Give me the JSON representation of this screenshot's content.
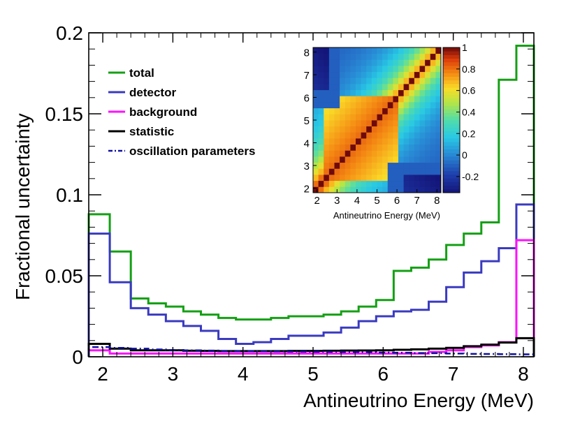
{
  "chart_data": [
    {
      "type": "step",
      "xlabel": "Antineutrino Energy (MeV)",
      "ylabel": "Fractional uncertainty",
      "xlim": [
        1.8,
        8.15
      ],
      "ylim": [
        0,
        0.2
      ],
      "xticks": [
        2,
        3,
        4,
        5,
        6,
        7,
        8
      ],
      "xtick_labels": [
        "2",
        "3",
        "4",
        "5",
        "6",
        "7",
        "8"
      ],
      "yticks": [
        0,
        0.05,
        0.1,
        0.15,
        0.2
      ],
      "ytick_labels": [
        "0",
        "0.05",
        "0.1",
        "0.15",
        "0.2"
      ],
      "legend_position": "upper-left",
      "bin_edges": [
        1.8,
        2.1,
        2.4,
        2.65,
        2.9,
        3.15,
        3.4,
        3.65,
        3.9,
        4.15,
        4.4,
        4.65,
        4.9,
        5.15,
        5.4,
        5.65,
        5.9,
        6.15,
        6.4,
        6.65,
        6.9,
        7.15,
        7.4,
        7.65,
        7.9,
        8.15
      ],
      "series": [
        {
          "name": "total",
          "color": "#14a014",
          "dash": "solid",
          "values": [
            0.088,
            0.065,
            0.036,
            0.033,
            0.031,
            0.028,
            0.026,
            0.024,
            0.023,
            0.023,
            0.024,
            0.025,
            0.025,
            0.026,
            0.028,
            0.031,
            0.035,
            0.053,
            0.055,
            0.06,
            0.069,
            0.076,
            0.083,
            0.171,
            0.192
          ]
        },
        {
          "name": "detector",
          "color": "#3a3ac0",
          "dash": "solid",
          "values": [
            0.076,
            0.046,
            0.03,
            0.026,
            0.022,
            0.019,
            0.016,
            0.011,
            0.008,
            0.009,
            0.011,
            0.013,
            0.013,
            0.015,
            0.018,
            0.022,
            0.025,
            0.028,
            0.029,
            0.034,
            0.043,
            0.052,
            0.059,
            0.067,
            0.094
          ]
        },
        {
          "name": "background",
          "color": "#ff10ff",
          "dash": "solid",
          "values": [
            0.004,
            0.002,
            0.002,
            0.002,
            0.002,
            0.002,
            0.002,
            0.002,
            0.002,
            0.002,
            0.002,
            0.002,
            0.002,
            0.002,
            0.002,
            0.002,
            0.002,
            0.002,
            0.002,
            0.003,
            0.004,
            0.006,
            0.007,
            0.009,
            0.072
          ]
        },
        {
          "name": "statistic",
          "color": "#000000",
          "dash": "solid",
          "values": [
            0.008,
            0.005,
            0.004,
            0.004,
            0.004,
            0.0037,
            0.0036,
            0.0035,
            0.0035,
            0.0035,
            0.0035,
            0.0036,
            0.0036,
            0.0037,
            0.0038,
            0.0039,
            0.004,
            0.0043,
            0.0046,
            0.005,
            0.0055,
            0.0065,
            0.0075,
            0.0088,
            0.0115
          ]
        },
        {
          "name": "oscillation parameters",
          "color": "#1010a0",
          "dash": "dashdot",
          "values": [
            0.006,
            0.0055,
            0.005,
            0.0045,
            0.0042,
            0.004,
            0.0038,
            0.0036,
            0.0035,
            0.0034,
            0.0033,
            0.0032,
            0.0031,
            0.003,
            0.0029,
            0.0028,
            0.0026,
            0.0025,
            0.0023,
            0.0022,
            0.002,
            0.0018,
            0.0017,
            0.0016,
            0.0015
          ]
        }
      ]
    },
    {
      "type": "heatmap",
      "xlabel": "Antineutrino Energy (MeV)",
      "ylabel": "",
      "xlim": [
        1.8,
        8.2
      ],
      "ylim": [
        1.8,
        8.2
      ],
      "xticks": [
        2,
        3,
        4,
        5,
        6,
        7,
        8
      ],
      "xtick_labels": [
        "2",
        "3",
        "4",
        "5",
        "6",
        "7",
        "8"
      ],
      "yticks": [
        2,
        3,
        4,
        5,
        6,
        7,
        8
      ],
      "ytick_labels": [
        "2",
        "3",
        "4",
        "5",
        "6",
        "7",
        "8"
      ],
      "colorbar_ticks": [
        -0.2,
        0,
        0.2,
        0.4,
        0.6,
        0.8,
        1
      ],
      "colorbar_labels": [
        "-0.2",
        "0",
        "0.2",
        "0.4",
        "0.6",
        "0.8",
        "1"
      ],
      "zlim": [
        -0.35,
        1
      ],
      "n_bins": 24,
      "description_of_values": "correlation matrix: 1 on the diagonal, strong positive correlation (~0.8-0.9) within 2.4-6 MeV block, negative correlation (~-0.3) between low and high energy bins"
    }
  ]
}
